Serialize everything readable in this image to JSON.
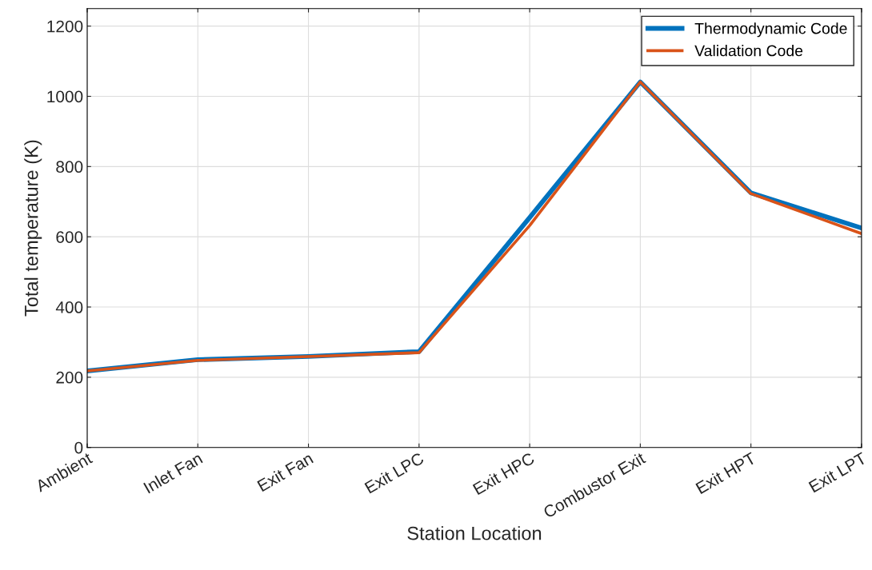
{
  "chart_data": {
    "type": "line",
    "xlabel": "Station Location",
    "ylabel": "Total temperature (K)",
    "categories": [
      "Ambient",
      "Inlet Fan",
      "Exit Fan",
      "Exit LPC",
      "Exit HPC",
      "Combustor Exit",
      "Exit HPT",
      "Exit LPT"
    ],
    "series": [
      {
        "name": "Thermodynamic Code",
        "color": "#0072bd",
        "values": [
          218,
          250,
          259,
          273,
          655,
          1041,
          725,
          625
        ]
      },
      {
        "name": "Validation Code",
        "color": "#d95319",
        "values": [
          218,
          248,
          259,
          270,
          632,
          1041,
          723,
          609
        ]
      }
    ],
    "ylim": [
      0,
      1250
    ],
    "yticks": [
      0,
      200,
      400,
      600,
      800,
      1000,
      1200
    ],
    "grid": true,
    "legend": "top right",
    "marker": "none",
    "line_style": "solid"
  }
}
